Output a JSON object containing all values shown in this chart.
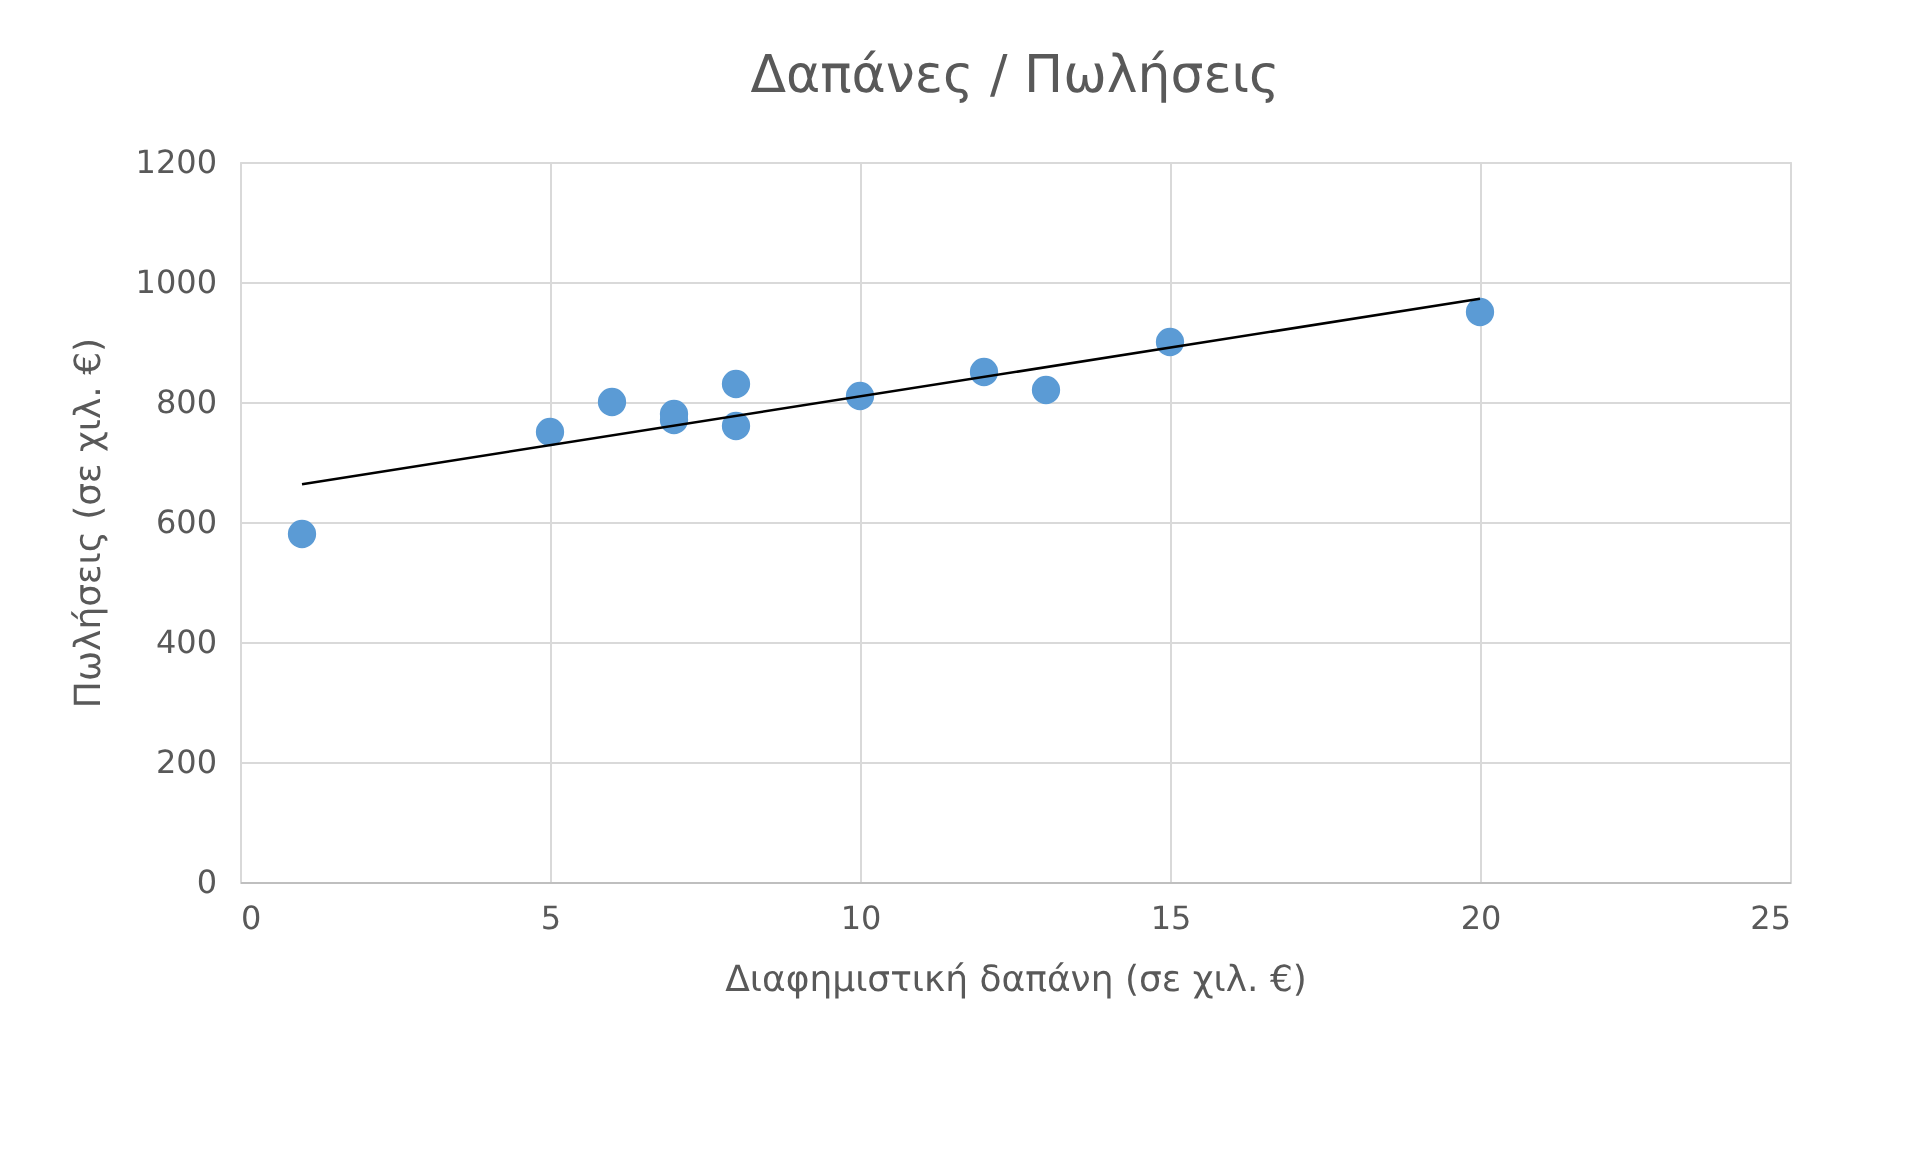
{
  "chart_data": {
    "type": "scatter",
    "title": "Δαπάνες / Πωλήσεις",
    "xlabel": "Διαφημιστική δαπάνη (σε χιλ. €)",
    "ylabel": "Πωλήσεις (σε χιλ. €)",
    "series": [
      {
        "type": "scatter",
        "marker": "circle",
        "color": "#5b9bd5",
        "x": [
          1,
          5,
          6,
          7,
          7,
          8,
          8,
          10,
          12,
          13,
          15,
          20
        ],
        "values": [
          580,
          750,
          800,
          780,
          770,
          830,
          760,
          810,
          850,
          820,
          900,
          950
        ]
      },
      {
        "type": "line",
        "color": "#000000",
        "x": [
          1,
          20
        ],
        "values": [
          663,
          972
        ]
      }
    ],
    "xlim": [
      0,
      25
    ],
    "xticks": [
      0,
      5,
      10,
      15,
      20,
      25
    ],
    "ylim": [
      0,
      1200
    ],
    "yticks": [
      0,
      200,
      400,
      600,
      800,
      1000,
      1200
    ],
    "grid": true
  }
}
